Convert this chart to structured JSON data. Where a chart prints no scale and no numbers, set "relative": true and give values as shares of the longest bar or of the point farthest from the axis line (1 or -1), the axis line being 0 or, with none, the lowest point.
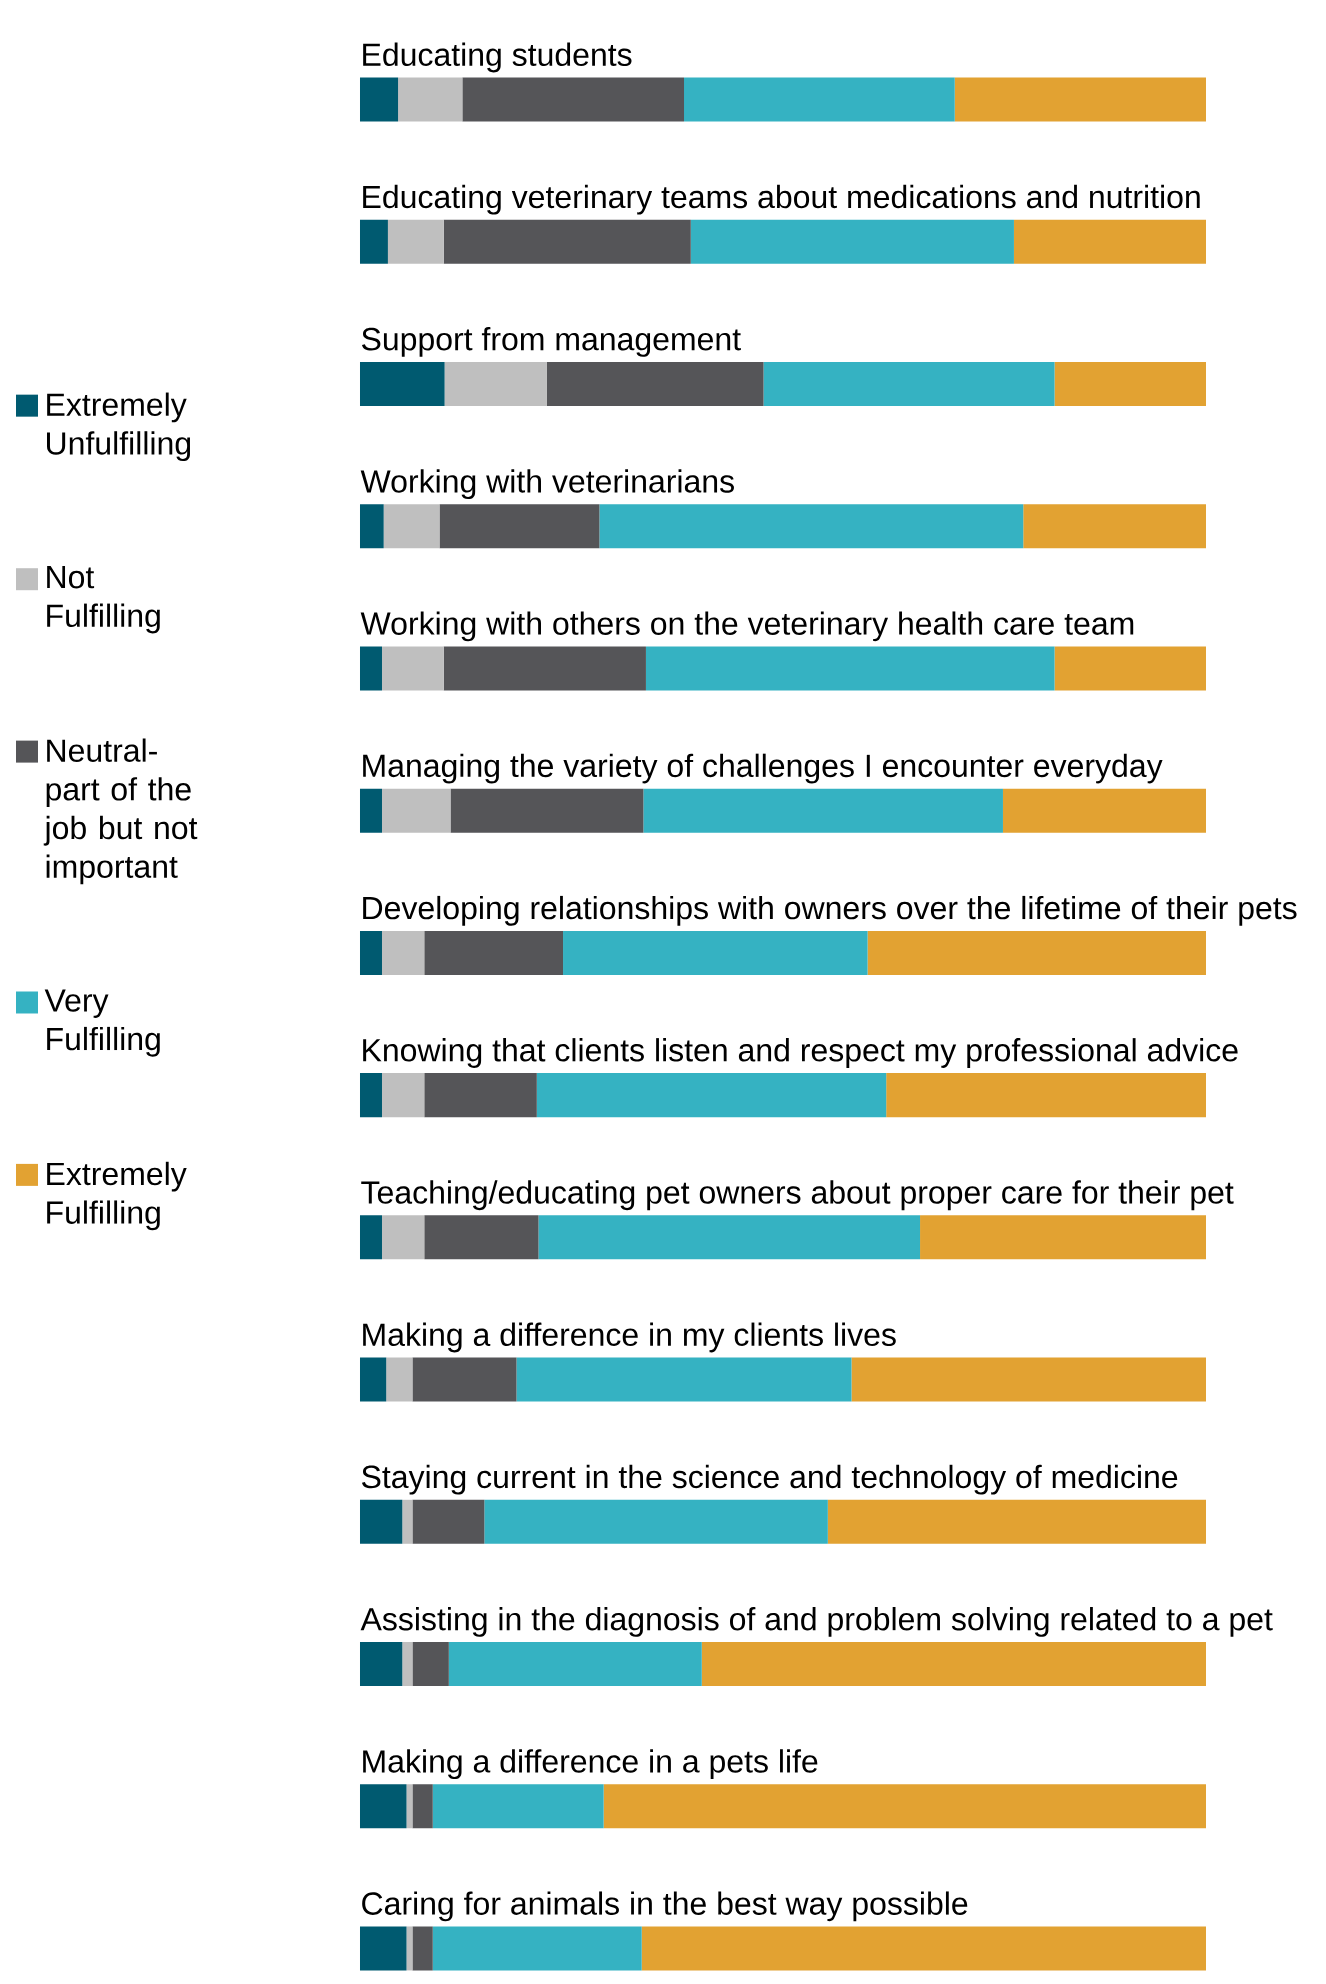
{
  "chart_data": {
    "type": "bar",
    "orientation": "horizontal",
    "stacked": true,
    "relative": true,
    "legend": "left",
    "categories": [
      "Educating students",
      "Educating veterinary teams about medications and nutrition",
      "Support from management",
      "Working with veterinarians",
      "Working with others on the veterinary health care team",
      "Managing the variety of challenges I encounter everyday",
      "Developing relationships with owners over the lifetime of their pets",
      "Knowing that clients listen and respect my professional advice",
      "Teaching/educating pet owners about proper care for their pet",
      "Making a difference in my clients lives",
      "Staying current in the science and technology of medicine",
      "Assisting in the diagnosis of and problem solving related to a pet",
      "Making a difference in a pets life",
      "Caring for animals in the best way possible"
    ],
    "series": [
      {
        "name": "Extremely Unfulfilling",
        "color": "#005a70",
        "values": [
          0.045,
          0.033,
          0.1,
          0.028,
          0.026,
          0.026,
          0.026,
          0.026,
          0.026,
          0.031,
          0.05,
          0.05,
          0.055,
          0.055
        ]
      },
      {
        "name": "Not Fulfilling",
        "color": "#bfbfbf",
        "values": [
          0.076,
          0.066,
          0.121,
          0.066,
          0.073,
          0.081,
          0.05,
          0.05,
          0.05,
          0.031,
          0.012,
          0.012,
          0.007,
          0.007
        ]
      },
      {
        "name": "Neutral- part of the job but not important",
        "color": "#555558",
        "values": [
          0.262,
          0.292,
          0.256,
          0.189,
          0.239,
          0.228,
          0.164,
          0.133,
          0.135,
          0.123,
          0.085,
          0.043,
          0.024,
          0.024
        ]
      },
      {
        "name": "Very Fulfilling",
        "color": "#35b2c2",
        "values": [
          0.32,
          0.382,
          0.344,
          0.501,
          0.483,
          0.425,
          0.36,
          0.413,
          0.451,
          0.396,
          0.406,
          0.299,
          0.202,
          0.247
        ]
      },
      {
        "name": "Extremely Fulfilling",
        "color": "#e2a232",
        "values": [
          0.297,
          0.227,
          0.179,
          0.216,
          0.179,
          0.24,
          0.4,
          0.378,
          0.338,
          0.419,
          0.447,
          0.596,
          0.712,
          0.667
        ]
      }
    ]
  }
}
